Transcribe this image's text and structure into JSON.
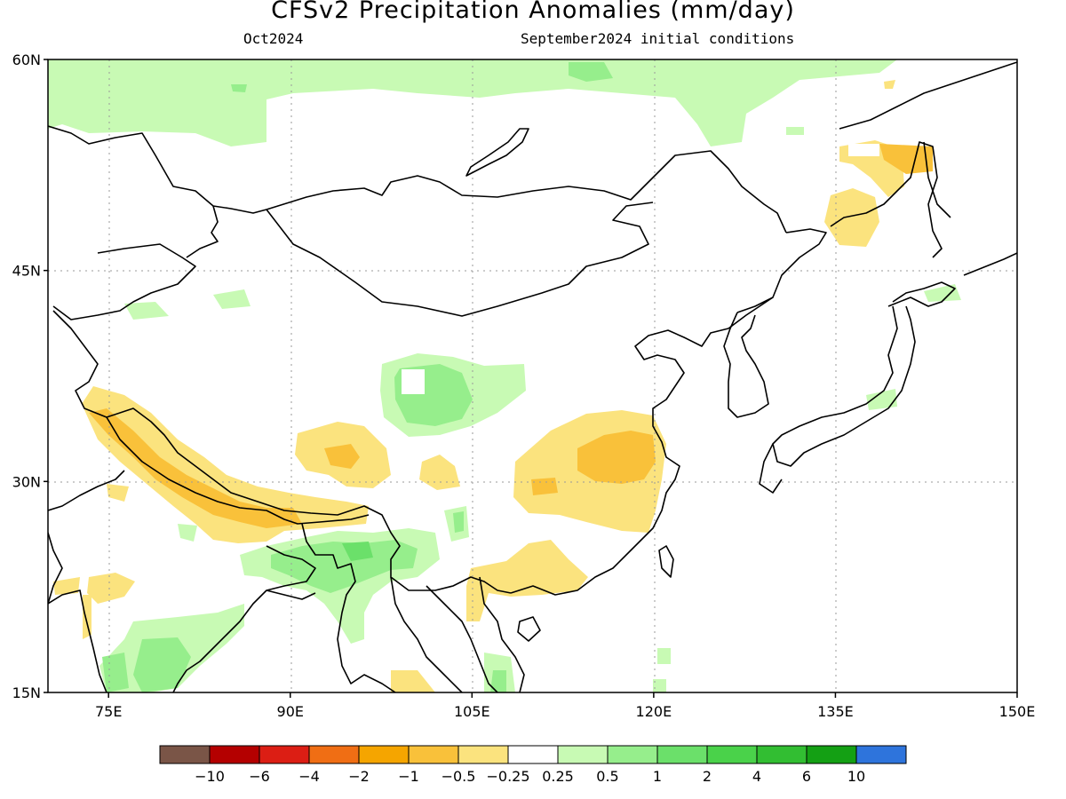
{
  "title": "CFSv2 Precipitation Anomalies (mm/day)",
  "subtitle_left": "Oct2024",
  "subtitle_right": "September2024 initial conditions",
  "map": {
    "lon_range": [
      70,
      150
    ],
    "lat_range": [
      15,
      60
    ],
    "lat_labels": [
      "60N",
      "45N",
      "30N",
      "15N"
    ],
    "lon_labels": [
      "75E",
      "90E",
      "105E",
      "120E",
      "135E",
      "150E"
    ],
    "grid": true
  },
  "colorbar": {
    "labels": [
      "−10",
      "−6",
      "−4",
      "−2",
      "−1",
      "−0.5",
      "−0.25",
      "0.25",
      "0.5",
      "1",
      "2",
      "4",
      "6",
      "10"
    ],
    "colors": [
      "#7a5547",
      "#b40000",
      "#dc1e14",
      "#f06e14",
      "#f5a500",
      "#f9c13a",
      "#fbe37e",
      "#ffffff",
      "#c8fab4",
      "#96ee8c",
      "#6be06a",
      "#4ad24a",
      "#32be32",
      "#14a014",
      "#2e74dc"
    ]
  }
}
